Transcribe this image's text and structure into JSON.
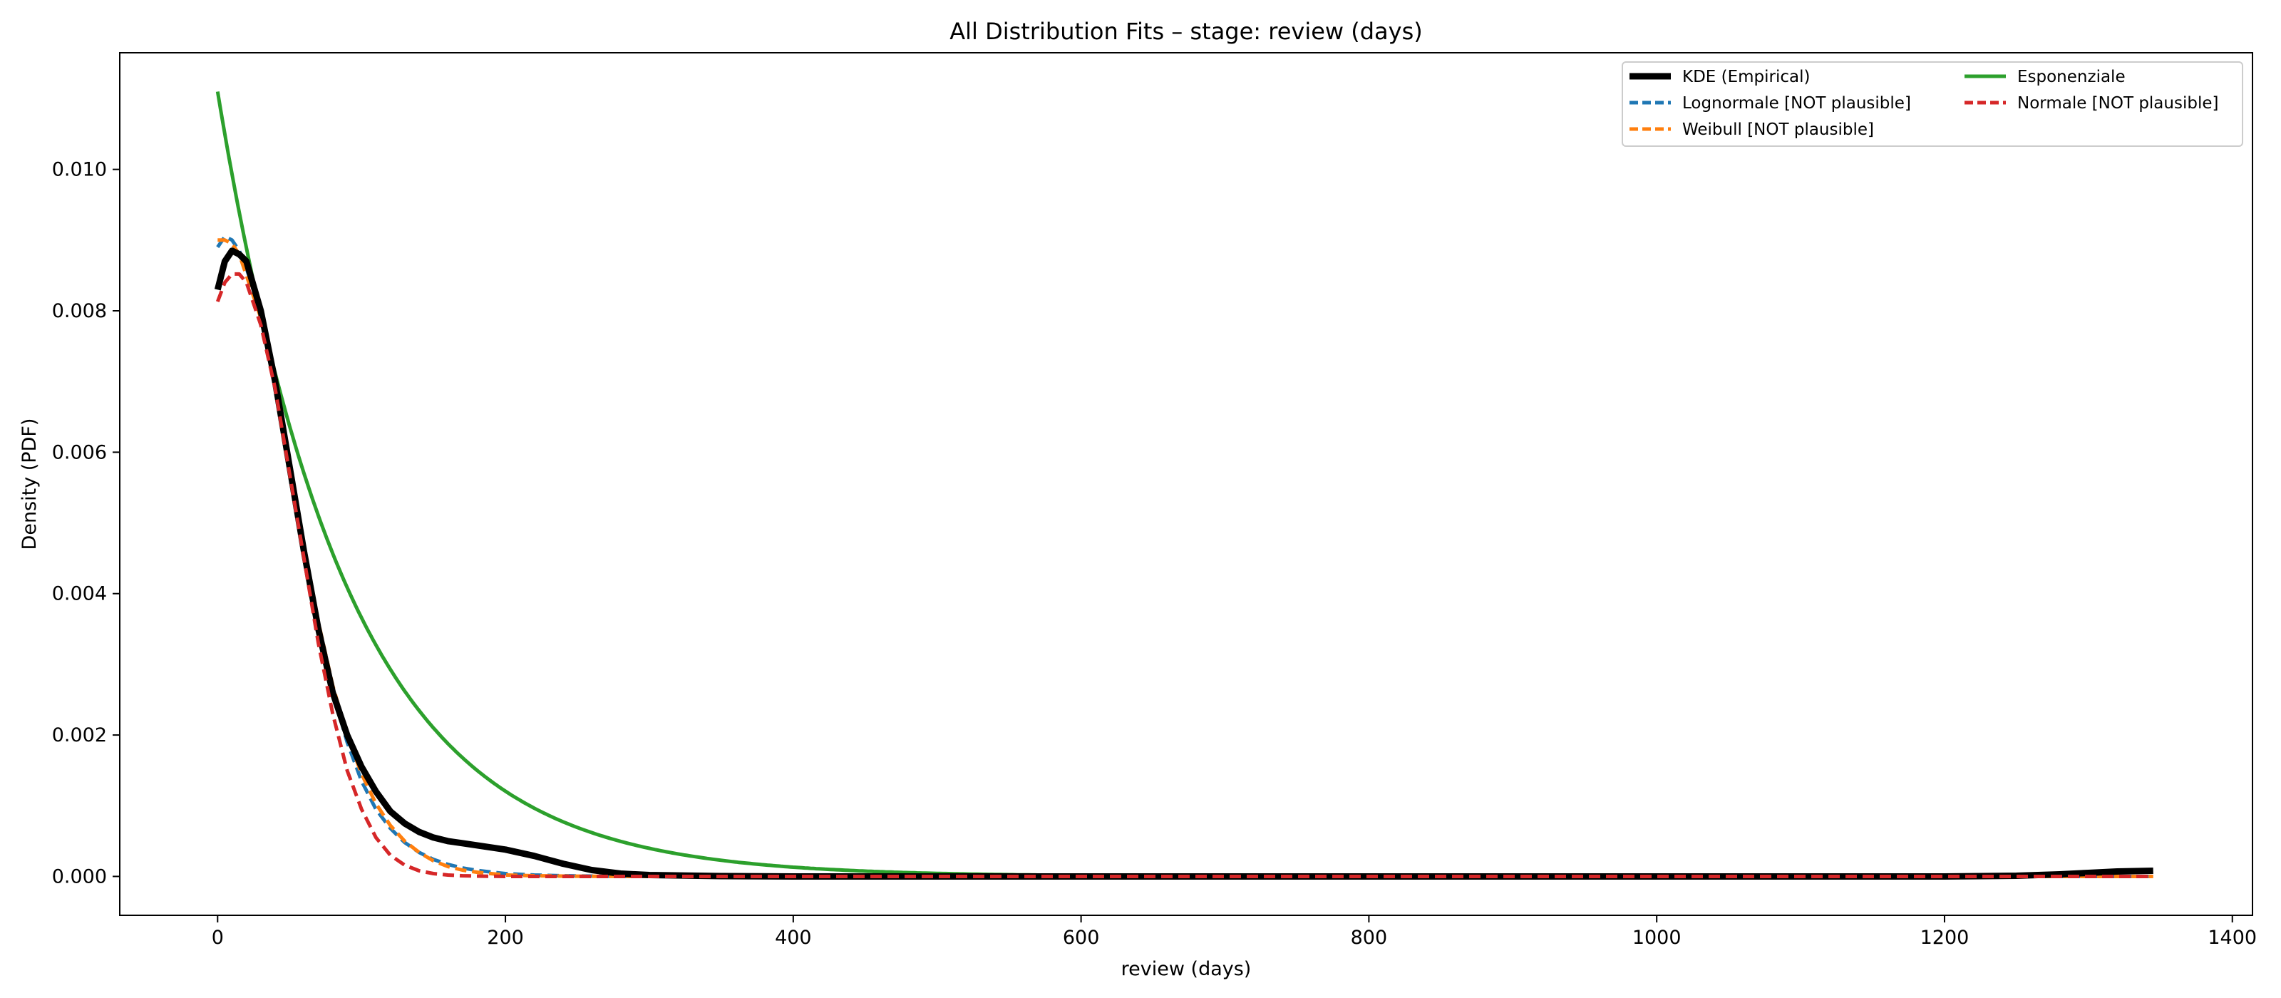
{
  "chart_data": {
    "type": "line",
    "title": "All Distribution Fits – stage: review (days)",
    "xlabel": "review (days)",
    "ylabel": "Density (PDF)",
    "xlim": [
      -68,
      1414
    ],
    "ylim": [
      -0.00055,
      0.01165
    ],
    "xticks": [
      0,
      200,
      400,
      600,
      800,
      1000,
      1200,
      1400
    ],
    "yticks": [
      0.0,
      0.002,
      0.004,
      0.006,
      0.008,
      0.01
    ],
    "xtick_labels": [
      "0",
      "200",
      "400",
      "600",
      "800",
      "1000",
      "1200",
      "1400"
    ],
    "ytick_labels": [
      "0.000",
      "0.002",
      "0.004",
      "0.006",
      "0.008",
      "0.010"
    ],
    "grid": false,
    "legend_position": "top-right",
    "legend_columns": 2,
    "series": [
      {
        "name": "KDE (Empirical)",
        "color": "#000000",
        "style": "solid",
        "weight": "heavy",
        "x": [
          0,
          5,
          10,
          15,
          20,
          30,
          40,
          50,
          60,
          70,
          80,
          90,
          100,
          110,
          120,
          130,
          140,
          150,
          160,
          170,
          180,
          200,
          220,
          240,
          260,
          280,
          300,
          350,
          400,
          600,
          800,
          1000,
          1200,
          1250,
          1280,
          1300,
          1320,
          1345
        ],
        "y": [
          0.0083,
          0.0087,
          0.00885,
          0.0088,
          0.0087,
          0.008,
          0.007,
          0.0058,
          0.0046,
          0.0035,
          0.0026,
          0.002,
          0.00155,
          0.0012,
          0.00092,
          0.00075,
          0.00063,
          0.00055,
          0.0005,
          0.00047,
          0.00044,
          0.00038,
          0.00029,
          0.00018,
          9e-05,
          4e-05,
          2e-05,
          5e-06,
          0.0,
          0.0,
          0.0,
          0.0,
          0.0,
          1e-05,
          3e-05,
          5e-05,
          7e-05,
          8e-05
        ]
      },
      {
        "name": "Esponenziale",
        "color": "#2ca02c",
        "style": "solid",
        "weight": "normal",
        "rate": 0.0111
      },
      {
        "name": "Lognormale [NOT plausible]",
        "color": "#1f77b4",
        "style": "dashed",
        "weight": "normal",
        "x": [
          0,
          5,
          10,
          15,
          20,
          30,
          40,
          50,
          60,
          70,
          80,
          90,
          100,
          110,
          120,
          130,
          140,
          150,
          160,
          170,
          180,
          200,
          220,
          240,
          260,
          280,
          300,
          400,
          1345
        ],
        "y": [
          0.0089,
          0.00905,
          0.009,
          0.00885,
          0.0086,
          0.008,
          0.007,
          0.0058,
          0.0046,
          0.0035,
          0.0026,
          0.0019,
          0.00135,
          0.00095,
          0.00068,
          0.00048,
          0.00034,
          0.00024,
          0.00017,
          0.00012,
          8.5e-05,
          4e-05,
          2e-05,
          1e-05,
          5e-06,
          2e-06,
          0.0,
          0.0,
          0.0
        ]
      },
      {
        "name": "Normale [NOT plausible]",
        "color": "#d62728",
        "style": "dashed",
        "weight": "normal",
        "x": [
          0,
          5,
          10,
          15,
          20,
          30,
          40,
          50,
          60,
          70,
          80,
          90,
          100,
          110,
          120,
          130,
          140,
          150,
          160,
          170,
          180,
          200,
          220,
          250,
          300,
          1345
        ],
        "y": [
          0.00813,
          0.0084,
          0.00852,
          0.00852,
          0.0084,
          0.0078,
          0.0069,
          0.0057,
          0.0045,
          0.0033,
          0.0023,
          0.0015,
          0.00095,
          0.00055,
          0.0003,
          0.00016,
          8e-05,
          4e-05,
          2e-05,
          1e-05,
          5e-06,
          0.0,
          0.0,
          0.0,
          0.0,
          0.0
        ]
      },
      {
        "name": "Weibull [NOT plausible]",
        "color": "#ff7f0e",
        "style": "dashed",
        "weight": "normal",
        "x": [
          0,
          5,
          10,
          15,
          20,
          30,
          40,
          50,
          60,
          70,
          80,
          90,
          100,
          110,
          120,
          130,
          140,
          150,
          160,
          170,
          180,
          200,
          220,
          240,
          260,
          300,
          400,
          1345
        ],
        "y": [
          0.009,
          0.009,
          0.00895,
          0.0088,
          0.0085,
          0.0079,
          0.007,
          0.0059,
          0.0047,
          0.0036,
          0.0027,
          0.002,
          0.00145,
          0.00103,
          0.00072,
          0.0005,
          0.00034,
          0.00022,
          0.00014,
          9e-05,
          6e-05,
          2e-05,
          1e-05,
          5e-06,
          2e-06,
          0.0,
          0.0,
          0.0
        ]
      }
    ],
    "legend_order": [
      "KDE (Empirical)",
      "Lognormale [NOT plausible]",
      "Weibull [NOT plausible]",
      "Esponenziale",
      "Normale [NOT plausible]"
    ]
  }
}
